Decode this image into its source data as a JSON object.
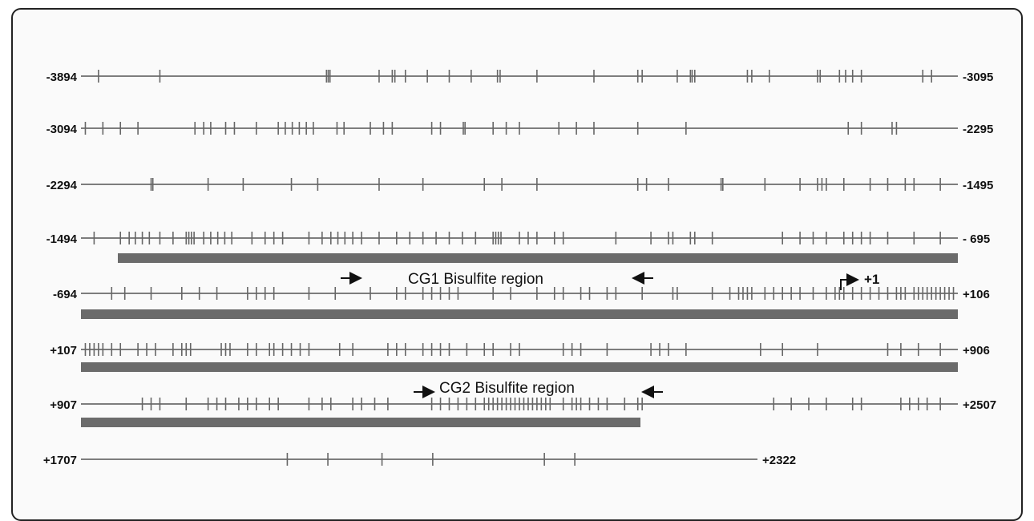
{
  "rows": [
    {
      "left": "-3894",
      "right": "-3095",
      "ticks": [
        0.02,
        0.09,
        0.28,
        0.282,
        0.284,
        0.34,
        0.355,
        0.358,
        0.37,
        0.395,
        0.42,
        0.445,
        0.475,
        0.478,
        0.52,
        0.585,
        0.635,
        0.64,
        0.68,
        0.695,
        0.697,
        0.7,
        0.76,
        0.765,
        0.785,
        0.84,
        0.843,
        0.865,
        0.872,
        0.88,
        0.89,
        0.96,
        0.97
      ]
    },
    {
      "left": "-3094",
      "right": "-2295",
      "ticks": [
        0.005,
        0.025,
        0.045,
        0.065,
        0.13,
        0.14,
        0.148,
        0.165,
        0.175,
        0.2,
        0.225,
        0.233,
        0.241,
        0.249,
        0.257,
        0.265,
        0.292,
        0.3,
        0.33,
        0.345,
        0.355,
        0.4,
        0.41,
        0.436,
        0.438,
        0.47,
        0.485,
        0.5,
        0.545,
        0.565,
        0.585,
        0.635,
        0.69,
        0.875,
        0.89,
        0.925,
        0.93
      ]
    },
    {
      "left": "-2294",
      "right": "-1495",
      "ticks": [
        0.08,
        0.082,
        0.145,
        0.185,
        0.24,
        0.27,
        0.34,
        0.39,
        0.46,
        0.48,
        0.52,
        0.635,
        0.645,
        0.67,
        0.73,
        0.732,
        0.78,
        0.82,
        0.84,
        0.845,
        0.85,
        0.87,
        0.9,
        0.92,
        0.94,
        0.95,
        0.98
      ]
    },
    {
      "left": "-1494",
      "right": "- 695",
      "ticks": [
        0.015,
        0.045,
        0.055,
        0.062,
        0.07,
        0.078,
        0.09,
        0.105,
        0.12,
        0.123,
        0.126,
        0.129,
        0.14,
        0.148,
        0.156,
        0.164,
        0.172,
        0.195,
        0.21,
        0.22,
        0.23,
        0.26,
        0.275,
        0.285,
        0.293,
        0.301,
        0.31,
        0.32,
        0.34,
        0.36,
        0.375,
        0.39,
        0.405,
        0.42,
        0.435,
        0.45,
        0.47,
        0.473,
        0.476,
        0.479,
        0.5,
        0.51,
        0.52,
        0.54,
        0.55,
        0.61,
        0.65,
        0.67,
        0.675,
        0.695,
        0.7,
        0.72,
        0.8,
        0.82,
        0.835,
        0.85,
        0.87,
        0.88,
        0.89,
        0.9,
        0.92,
        0.95,
        0.98
      ]
    },
    {
      "left": "-694",
      "right": "+106",
      "ticks": [
        0.035,
        0.05,
        0.08,
        0.115,
        0.135,
        0.155,
        0.19,
        0.2,
        0.21,
        0.22,
        0.26,
        0.29,
        0.33,
        0.36,
        0.37,
        0.39,
        0.4,
        0.41,
        0.42,
        0.43,
        0.47,
        0.49,
        0.52,
        0.54,
        0.55,
        0.57,
        0.58,
        0.6,
        0.61,
        0.64,
        0.675,
        0.68,
        0.72,
        0.74,
        0.75,
        0.755,
        0.76,
        0.765,
        0.78,
        0.79,
        0.8,
        0.81,
        0.82,
        0.835,
        0.85,
        0.86,
        0.865,
        0.87,
        0.88,
        0.89,
        0.9,
        0.91,
        0.92,
        0.93,
        0.935,
        0.94,
        0.95,
        0.955,
        0.96,
        0.965,
        0.97,
        0.975,
        0.98,
        0.985,
        0.99,
        0.995
      ]
    },
    {
      "left": "+107",
      "right": "+906",
      "ticks": [
        0.005,
        0.01,
        0.015,
        0.02,
        0.025,
        0.035,
        0.045,
        0.065,
        0.075,
        0.085,
        0.105,
        0.115,
        0.12,
        0.125,
        0.16,
        0.165,
        0.17,
        0.19,
        0.2,
        0.215,
        0.22,
        0.23,
        0.24,
        0.25,
        0.26,
        0.295,
        0.31,
        0.35,
        0.36,
        0.37,
        0.39,
        0.4,
        0.41,
        0.42,
        0.44,
        0.46,
        0.47,
        0.49,
        0.5,
        0.55,
        0.56,
        0.57,
        0.6,
        0.65,
        0.66,
        0.67,
        0.69,
        0.775,
        0.8,
        0.84,
        0.92,
        0.935,
        0.955,
        0.98
      ]
    },
    {
      "left": "+907",
      "right": "+2507",
      "ticks": [
        0.07,
        0.08,
        0.09,
        0.12,
        0.145,
        0.155,
        0.165,
        0.18,
        0.19,
        0.2,
        0.215,
        0.225,
        0.26,
        0.275,
        0.285,
        0.31,
        0.32,
        0.335,
        0.35,
        0.4,
        0.41,
        0.42,
        0.43,
        0.44,
        0.45,
        0.46,
        0.465,
        0.47,
        0.475,
        0.48,
        0.485,
        0.49,
        0.495,
        0.5,
        0.505,
        0.51,
        0.515,
        0.52,
        0.525,
        0.53,
        0.535,
        0.55,
        0.56,
        0.565,
        0.57,
        0.58,
        0.59,
        0.6,
        0.62,
        0.635,
        0.64,
        0.79,
        0.81,
        0.83,
        0.85,
        0.88,
        0.89,
        0.935,
        0.945,
        0.955,
        0.965,
        0.98
      ]
    },
    {
      "left": "+1707",
      "right": "+2322",
      "ticks": [
        0.305,
        0.365,
        0.445,
        0.52,
        0.685,
        0.73
      ]
    }
  ],
  "regions": [
    {
      "label": "CG1 Bisulfite region"
    },
    {
      "label": "CG2 Bisulfite region"
    }
  ],
  "tss_label": "+1"
}
